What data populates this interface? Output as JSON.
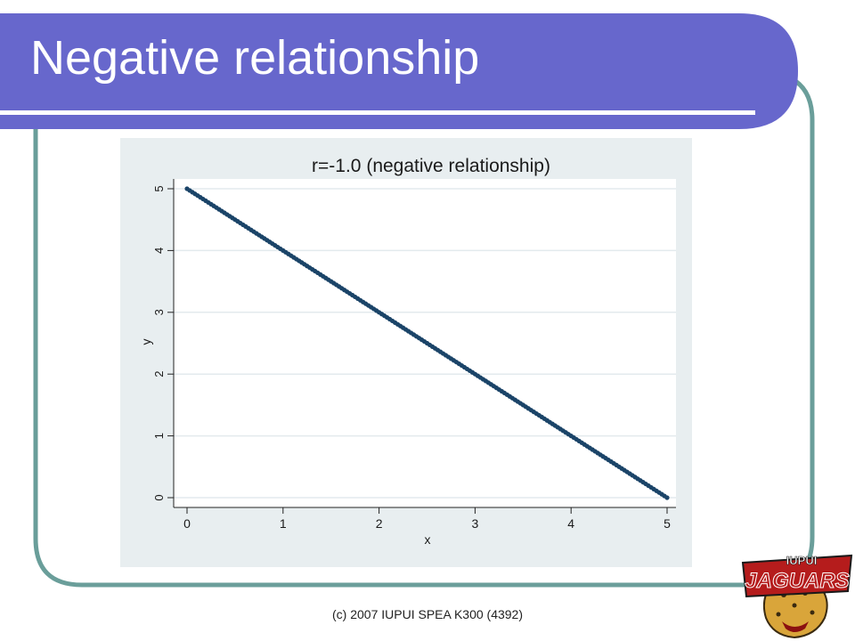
{
  "slide": {
    "title": "Negative relationship",
    "footer": "(c) 2007 IUPUI SPEA K300 (4392)",
    "colors": {
      "title_bar": "#6767cc",
      "frame_border": "#6a9e9a",
      "chart_background": "#e8eef0",
      "series": "#1b4468"
    }
  },
  "logo": {
    "text_top": "IUPUI",
    "text_main": "JAGUARS"
  },
  "chart_data": {
    "type": "line",
    "title": "r=-1.0 (negative relationship)",
    "xlabel": "x",
    "ylabel": "y",
    "xlim": [
      0,
      5
    ],
    "ylim": [
      0,
      5
    ],
    "xticks": [
      "0",
      "1",
      "2",
      "3",
      "4",
      "5"
    ],
    "yticks": [
      "0",
      "1",
      "2",
      "3",
      "4",
      "5"
    ],
    "grid": true,
    "series": [
      {
        "x": [
          0,
          0.5,
          1,
          1.5,
          2,
          2.5,
          3,
          3.5,
          4,
          4.5,
          5
        ],
        "y": [
          5,
          4.5,
          4,
          3.5,
          3,
          2.5,
          2,
          1.5,
          1,
          0.5,
          0
        ]
      }
    ]
  }
}
